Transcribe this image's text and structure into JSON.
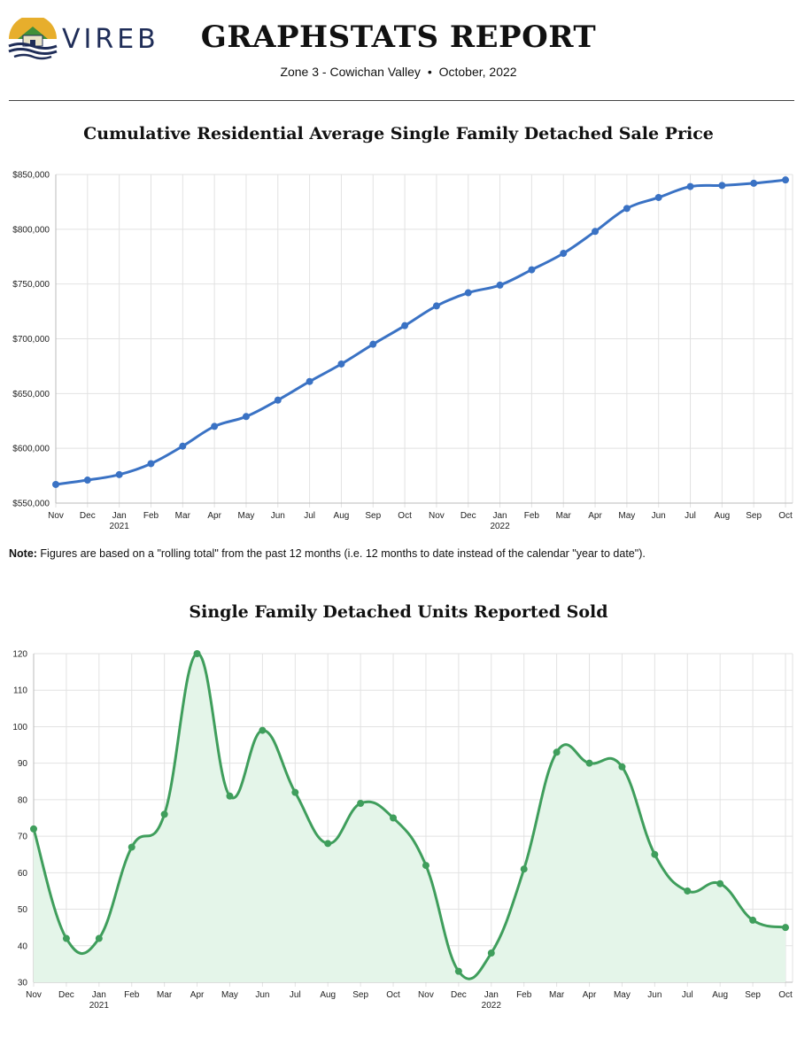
{
  "header": {
    "brand": "VIREB",
    "title": "GRAPHSTATS REPORT",
    "zone": "Zone 3 - Cowichan Valley",
    "separator": "•",
    "period": "October, 2022"
  },
  "colors": {
    "price_line": "#3a72c4",
    "units_line": "#3f9e5c",
    "units_fill": "#e4f5e9",
    "grid": "#e2e2e2",
    "logo_gold": "#e7ae2c",
    "logo_navy": "#1f2d58"
  },
  "note": {
    "label": "Note:",
    "text": " Figures are based on a \"rolling total\" from the past 12 months (i.e. 12 months to date instead of the calendar \"year to date\")."
  },
  "chart_data": [
    {
      "type": "line",
      "title": "Cumulative Residential Average Single Family Detached Sale Price",
      "categories": [
        "Nov",
        "Dec",
        "Jan",
        "Feb",
        "Mar",
        "Apr",
        "May",
        "Jun",
        "Jul",
        "Aug",
        "Sep",
        "Oct",
        "Nov",
        "Dec",
        "Jan",
        "Feb",
        "Mar",
        "Apr",
        "May",
        "Jun",
        "Jul",
        "Aug",
        "Sep",
        "Oct"
      ],
      "year_labels": [
        {
          "index": 2,
          "label": "2021"
        },
        {
          "index": 14,
          "label": "2022"
        }
      ],
      "values": [
        567000,
        571000,
        576000,
        586000,
        602000,
        620000,
        629000,
        644000,
        661000,
        677000,
        695000,
        712000,
        730000,
        742000,
        749000,
        763000,
        778000,
        798000,
        819000,
        829000,
        839000,
        840000,
        842000,
        845000
      ],
      "ylim": [
        550000,
        850000
      ],
      "yticks": [
        550000,
        600000,
        650000,
        700000,
        750000,
        800000,
        850000
      ],
      "ytick_labels": [
        "$550,000",
        "$600,000",
        "$650,000",
        "$700,000",
        "$750,000",
        "$800,000",
        "$850,000"
      ],
      "xlabel": "",
      "ylabel": "",
      "grid": true
    },
    {
      "type": "area",
      "title": "Single Family Detached Units Reported Sold",
      "categories": [
        "Nov",
        "Dec",
        "Jan",
        "Feb",
        "Mar",
        "Apr",
        "May",
        "Jun",
        "Jul",
        "Aug",
        "Sep",
        "Oct",
        "Nov",
        "Dec",
        "Jan",
        "Feb",
        "Mar",
        "Apr",
        "May",
        "Jun",
        "Jul",
        "Aug",
        "Sep",
        "Oct"
      ],
      "year_labels": [
        {
          "index": 2,
          "label": "2021"
        },
        {
          "index": 14,
          "label": "2022"
        }
      ],
      "values": [
        72,
        42,
        42,
        67,
        76,
        120,
        81,
        99,
        82,
        68,
        79,
        75,
        62,
        33,
        38,
        61,
        93,
        90,
        89,
        65,
        55,
        57,
        47,
        45
      ],
      "ylim": [
        30,
        120
      ],
      "yticks": [
        30,
        40,
        50,
        60,
        70,
        80,
        90,
        100,
        110,
        120
      ],
      "ytick_labels": [
        "30",
        "40",
        "50",
        "60",
        "70",
        "80",
        "90",
        "100",
        "110",
        "120"
      ],
      "xlabel": "",
      "ylabel": "",
      "grid": true
    }
  ]
}
